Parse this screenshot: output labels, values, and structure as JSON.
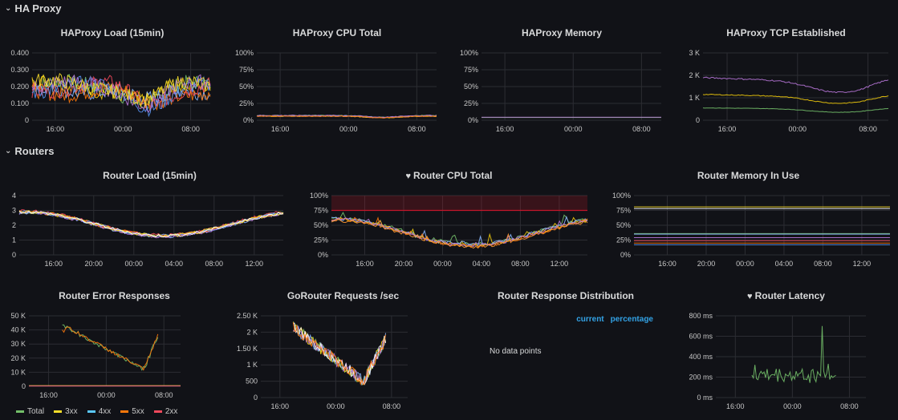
{
  "rows": {
    "haproxy": {
      "title": "HA Proxy",
      "chevron": "chevron-down-icon"
    },
    "routers": {
      "title": "Routers",
      "chevron": "chevron-down-icon"
    }
  },
  "panels": [
    {
      "id": "hap_load",
      "title": "HAProxy Load (15min)",
      "heart": false,
      "yticks": [
        "0.400",
        "0.300",
        "0.200",
        "0.100",
        "0"
      ],
      "xticks": [
        "16:00",
        "00:00",
        "08:00"
      ],
      "chart_data": {
        "type": "line",
        "ylim": [
          0,
          0.4
        ],
        "xlim": [
          0,
          22
        ],
        "series": [
          {
            "color": "#73bf69",
            "pattern": "hapload",
            "base": 0.2,
            "amp": 0.05
          },
          {
            "color": "#f2cc0c",
            "pattern": "hapload",
            "base": 0.2,
            "amp": 0.05
          },
          {
            "color": "#8ab8ff",
            "pattern": "hapload",
            "base": 0.19,
            "amp": 0.05
          },
          {
            "color": "#ff780a",
            "pattern": "hapload",
            "base": 0.18,
            "amp": 0.05
          },
          {
            "color": "#f2495c",
            "pattern": "hapload",
            "base": 0.2,
            "amp": 0.05
          },
          {
            "color": "#5794f2",
            "pattern": "hapload",
            "base": 0.19,
            "amp": 0.05
          },
          {
            "color": "#b877d9",
            "pattern": "hapload",
            "base": 0.2,
            "amp": 0.05
          },
          {
            "color": "#fade2a",
            "pattern": "hapload",
            "base": 0.21,
            "amp": 0.05
          }
        ]
      }
    },
    {
      "id": "hap_cpu",
      "title": "HAProxy CPU Total",
      "heart": false,
      "yticks": [
        "100%",
        "75%",
        "50%",
        "25%",
        "0%"
      ],
      "xticks": [
        "16:00",
        "00:00",
        "08:00"
      ],
      "chart_data": {
        "type": "line",
        "ylim": [
          0,
          100
        ],
        "xlim": [
          0,
          22
        ],
        "series": [
          {
            "color": "#73bf69",
            "pattern": "flat",
            "base": 7,
            "amp": 1
          },
          {
            "color": "#f2cc0c",
            "pattern": "flat",
            "base": 6,
            "amp": 1
          },
          {
            "color": "#8ab8ff",
            "pattern": "flat",
            "base": 6.5,
            "amp": 1
          },
          {
            "color": "#b877d9",
            "pattern": "flat",
            "base": 7,
            "amp": 1
          },
          {
            "color": "#ff780a",
            "pattern": "flat",
            "base": 6,
            "amp": 1
          }
        ]
      }
    },
    {
      "id": "hap_mem",
      "title": "HAProxy Memory",
      "heart": false,
      "yticks": [
        "100%",
        "75%",
        "50%",
        "25%",
        "0%"
      ],
      "xticks": [
        "16:00",
        "00:00",
        "08:00"
      ],
      "chart_data": {
        "type": "line",
        "ylim": [
          0,
          100
        ],
        "xlim": [
          0,
          22
        ],
        "series": [
          {
            "color": "#73bf69",
            "pattern": "const",
            "base": 4,
            "amp": 0
          },
          {
            "color": "#b877d9",
            "pattern": "const",
            "base": 4.5,
            "amp": 0
          }
        ]
      }
    },
    {
      "id": "hap_tcp",
      "title": "HAProxy TCP Established",
      "heart": false,
      "yticks": [
        "3 K",
        "2 K",
        "1 K",
        "0"
      ],
      "xticks": [
        "16:00",
        "00:00",
        "08:00"
      ],
      "chart_data": {
        "type": "line",
        "ylim": [
          0,
          3000
        ],
        "xlim": [
          0,
          22
        ],
        "series": [
          {
            "color": "#b877d9",
            "pattern": "tcp",
            "base": 1900,
            "amp": 500
          },
          {
            "color": "#f2cc0c",
            "pattern": "tcp",
            "base": 1150,
            "amp": 300
          },
          {
            "color": "#73bf69",
            "pattern": "tcp",
            "base": 550,
            "amp": 150
          }
        ]
      }
    },
    {
      "id": "rt_load",
      "title": "Router Load (15min)",
      "heart": false,
      "yticks": [
        "4",
        "3",
        "2",
        "1",
        "0"
      ],
      "xticks": [
        "16:00",
        "20:00",
        "00:00",
        "04:00",
        "08:00",
        "12:00"
      ],
      "chart_data": {
        "type": "line",
        "ylim": [
          0,
          4
        ],
        "xlim": [
          0,
          22
        ],
        "series": [
          {
            "color": "#73bf69",
            "pattern": "wave",
            "base": 2.9,
            "amp": 1.1
          },
          {
            "color": "#f2cc0c",
            "pattern": "wave",
            "base": 2.9,
            "amp": 1.1
          },
          {
            "color": "#8ab8ff",
            "pattern": "wave",
            "base": 2.85,
            "amp": 1.1
          },
          {
            "color": "#ff780a",
            "pattern": "wave",
            "base": 2.9,
            "amp": 1.1
          },
          {
            "color": "#f2495c",
            "pattern": "wave",
            "base": 2.95,
            "amp": 1.1
          },
          {
            "color": "#5794f2",
            "pattern": "wave",
            "base": 2.9,
            "amp": 1.1
          },
          {
            "color": "#b877d9",
            "pattern": "wave",
            "base": 2.85,
            "amp": 1.1
          },
          {
            "color": "#fade2a",
            "pattern": "wave",
            "base": 2.9,
            "amp": 1.1
          },
          {
            "color": "#ffffff",
            "pattern": "wave",
            "base": 2.9,
            "amp": 1.1
          }
        ]
      }
    },
    {
      "id": "rt_cpu",
      "title": "Router CPU Total",
      "heart": true,
      "yticks": [
        "100%",
        "75%",
        "50%",
        "25%",
        "0%"
      ],
      "xticks": [
        "16:00",
        "20:00",
        "00:00",
        "04:00",
        "08:00",
        "12:00"
      ],
      "threshold": {
        "value": 75,
        "color": "#c4162a"
      },
      "chart_data": {
        "type": "line",
        "ylim": [
          0,
          100
        ],
        "xlim": [
          0,
          22
        ],
        "series": [
          {
            "color": "#73bf69",
            "pattern": "wave",
            "base": 62,
            "amp": 30
          },
          {
            "color": "#f2cc0c",
            "pattern": "wave",
            "base": 60,
            "amp": 30
          },
          {
            "color": "#8ab8ff",
            "pattern": "wave",
            "base": 61,
            "amp": 30
          },
          {
            "color": "#ff780a",
            "pattern": "wave",
            "base": 59,
            "amp": 30
          },
          {
            "color": "#b877d9",
            "pattern": "wave",
            "base": 60,
            "amp": 30
          },
          {
            "color": "#ff9830",
            "pattern": "wave",
            "base": 58,
            "amp": 30
          }
        ]
      }
    },
    {
      "id": "rt_mem",
      "title": "Router Memory In Use",
      "heart": false,
      "yticks": [
        "100%",
        "75%",
        "50%",
        "25%",
        "0%"
      ],
      "xticks": [
        "16:00",
        "20:00",
        "00:00",
        "04:00",
        "08:00",
        "12:00"
      ],
      "chart_data": {
        "type": "line",
        "ylim": [
          0,
          100
        ],
        "xlim": [
          0,
          22
        ],
        "series": [
          {
            "color": "#fade2a",
            "pattern": "const",
            "base": 81,
            "amp": 0
          },
          {
            "color": "#ffffff",
            "pattern": "const",
            "base": 78,
            "amp": 0
          },
          {
            "color": "#73bf69",
            "pattern": "const",
            "base": 36,
            "amp": 0
          },
          {
            "color": "#8ab8ff",
            "pattern": "const",
            "base": 35,
            "amp": 0
          },
          {
            "color": "#b877d9",
            "pattern": "const",
            "base": 29,
            "amp": 0
          },
          {
            "color": "#f2495c",
            "pattern": "const",
            "base": 24,
            "amp": 0
          },
          {
            "color": "#ff780a",
            "pattern": "const",
            "base": 20,
            "amp": 0
          },
          {
            "color": "#5794f2",
            "pattern": "const",
            "base": 17,
            "amp": 0
          }
        ]
      }
    },
    {
      "id": "rt_err",
      "title": "Router Error Responses",
      "heart": false,
      "yticks": [
        "50 K",
        "40 K",
        "30 K",
        "20 K",
        "10 K",
        "0"
      ],
      "xticks": [
        "16:00",
        "00:00",
        "08:00"
      ],
      "chart_data": {
        "type": "line",
        "ylim": [
          0,
          50000
        ],
        "xlim": [
          0,
          22
        ],
        "series": [
          {
            "name": "Total",
            "color": "#73bf69",
            "pattern": "err",
            "base": 0,
            "amp": 0
          },
          {
            "name": "3xx",
            "color": "#fade2a",
            "pattern": "zero",
            "base": 500,
            "amp": 0
          },
          {
            "name": "4xx",
            "color": "#5ac8fa",
            "pattern": "zero",
            "base": 300,
            "amp": 0
          },
          {
            "name": "5xx",
            "color": "#ff780a",
            "pattern": "err",
            "base": 0,
            "amp": 0
          },
          {
            "name": "2xx",
            "color": "#f2495c",
            "pattern": "zero",
            "base": 200,
            "amp": 0
          }
        ]
      }
    },
    {
      "id": "go_req",
      "title": "GoRouter Requests /sec",
      "heart": false,
      "yticks": [
        "2.50 K",
        "2 K",
        "1.50 K",
        "1 K",
        "500",
        "0"
      ],
      "xticks": [
        "16:00",
        "00:00",
        "08:00"
      ],
      "chart_data": {
        "type": "line",
        "ylim": [
          0,
          2500
        ],
        "xlim": [
          0,
          22
        ],
        "series": [
          {
            "color": "#73bf69",
            "pattern": "req",
            "base": 0,
            "amp": 0
          },
          {
            "color": "#f2cc0c",
            "pattern": "req",
            "base": 0,
            "amp": 0
          },
          {
            "color": "#8ab8ff",
            "pattern": "req",
            "base": 0,
            "amp": 0
          },
          {
            "color": "#b877d9",
            "pattern": "req",
            "base": 0,
            "amp": 0
          },
          {
            "color": "#ffffff",
            "pattern": "req",
            "base": 0,
            "amp": 0
          },
          {
            "color": "#ff780a",
            "pattern": "req",
            "base": 0,
            "amp": 0
          }
        ]
      }
    },
    {
      "id": "rt_dist",
      "title": "Router Response Distribution",
      "heart": false,
      "table_headers": [
        "current",
        "percentage"
      ],
      "no_data": "No data points"
    },
    {
      "id": "rt_lat",
      "title": "Router Latency",
      "heart": true,
      "yticks": [
        "800 ms",
        "600 ms",
        "400 ms",
        "200 ms",
        "0 ms"
      ],
      "xticks": [
        "16:00",
        "00:00",
        "08:00"
      ],
      "chart_data": {
        "type": "line",
        "ylim": [
          0,
          800
        ],
        "xlim": [
          0,
          22
        ],
        "series": [
          {
            "color": "#73bf69",
            "pattern": "lat",
            "base": 0,
            "amp": 0
          }
        ]
      }
    }
  ],
  "legend": [
    {
      "name": "Total",
      "color": "#73bf69"
    },
    {
      "name": "3xx",
      "color": "#fade2a"
    },
    {
      "name": "4xx",
      "color": "#5ac8fa"
    },
    {
      "name": "5xx",
      "color": "#ff780a"
    },
    {
      "name": "2xx",
      "color": "#f2495c"
    }
  ]
}
